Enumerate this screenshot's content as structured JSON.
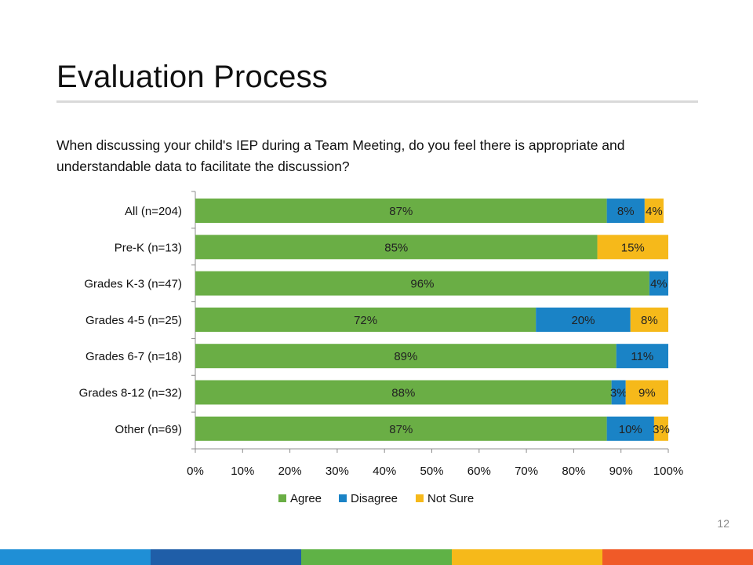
{
  "slide": {
    "title": "Evaluation Process",
    "question": "When discussing your child's IEP during a Team Meeting, do you feel there is appropriate and understandable data to facilitate the discussion?",
    "page_number": "12",
    "footer_colors": [
      "#1f8fd6",
      "#1f5ea8",
      "#5fb246",
      "#f6b91a",
      "#f05a28"
    ]
  },
  "chart_data": {
    "type": "bar",
    "orientation": "horizontal",
    "stacked": true,
    "categories": [
      "All (n=204)",
      "Pre-K (n=13)",
      "Grades K-3 (n=47)",
      "Grades 4-5 (n=25)",
      "Grades 6-7 (n=18)",
      "Grades 8-12 (n=32)",
      "Other (n=69)"
    ],
    "series": [
      {
        "name": "Agree",
        "color": "#6aae45",
        "values": [
          87,
          85,
          96,
          72,
          89,
          88,
          87
        ],
        "labels": [
          "87%",
          "85%",
          "96%",
          "72%",
          "89%",
          "88%",
          "87%"
        ]
      },
      {
        "name": "Disagree",
        "color": "#1a83c6",
        "values": [
          8,
          0,
          4,
          20,
          11,
          3,
          10
        ],
        "labels": [
          "8%",
          "",
          "4%",
          "20%",
          "11%",
          "3%",
          "10%"
        ]
      },
      {
        "name": "Not Sure",
        "color": "#f6b91a",
        "values": [
          4,
          15,
          0,
          8,
          0,
          9,
          3
        ],
        "labels": [
          "4%",
          "15%",
          "",
          "8%",
          "",
          "9%",
          "3%"
        ]
      }
    ],
    "xlim": [
      0,
      100
    ],
    "xticks": [
      "0%",
      "10%",
      "20%",
      "30%",
      "40%",
      "50%",
      "60%",
      "70%",
      "80%",
      "90%",
      "100%"
    ],
    "legend_position": "bottom",
    "grid": false
  }
}
